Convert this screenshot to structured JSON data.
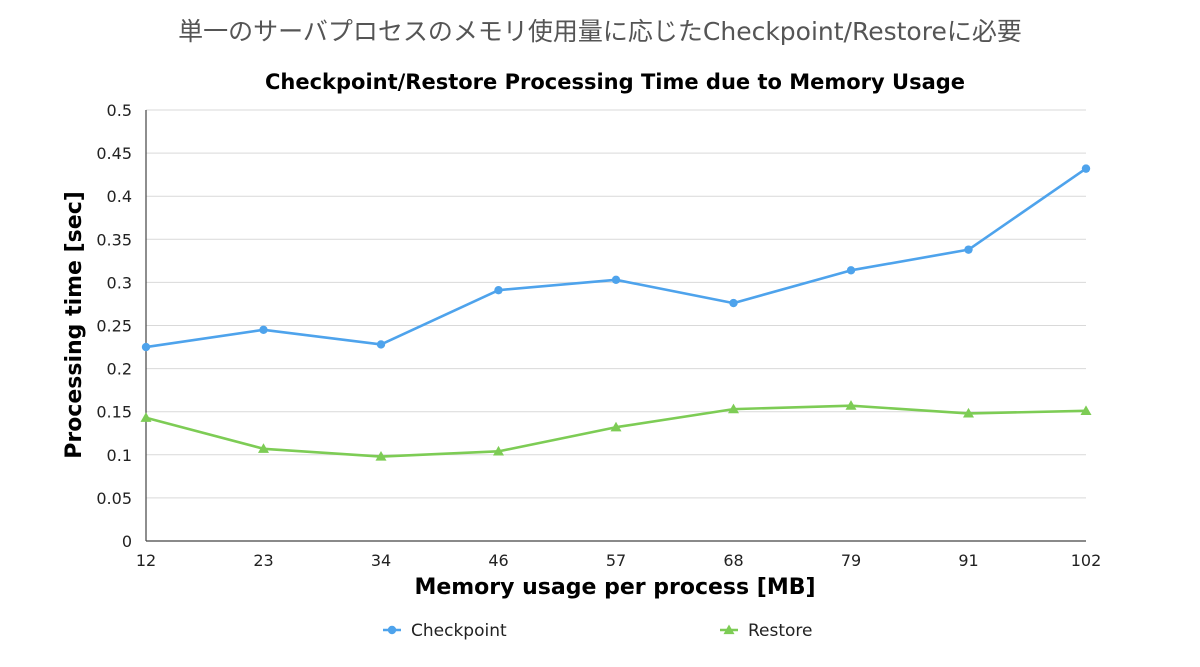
{
  "page": {
    "title": "単一のサーバプロセスのメモリ使用量に応じたCheckpoint/Restoreに必要"
  },
  "chart_data": {
    "type": "line",
    "title": "Checkpoint/Restore Processing Time due to Memory Usage",
    "xlabel": "Memory usage per process [MB]",
    "ylabel": "Processing time [sec]",
    "categories": [
      "12",
      "23",
      "34",
      "46",
      "57",
      "68",
      "79",
      "91",
      "102"
    ],
    "ylim": [
      0,
      0.5
    ],
    "yticks": [
      "0",
      "0.05",
      "0.1",
      "0.15",
      "0.2",
      "0.25",
      "0.3",
      "0.35",
      "0.4",
      "0.45",
      "0.5"
    ],
    "grid": true,
    "legend_position": "bottom",
    "series": [
      {
        "name": "Checkpoint",
        "color": "#4ea3ec",
        "marker": "circle",
        "values": [
          0.225,
          0.245,
          0.228,
          0.291,
          0.303,
          0.276,
          0.314,
          0.338,
          0.432
        ]
      },
      {
        "name": "Restore",
        "color": "#7dcc55",
        "marker": "triangle",
        "values": [
          0.143,
          0.107,
          0.098,
          0.104,
          0.132,
          0.153,
          0.157,
          0.148,
          0.151
        ]
      }
    ]
  }
}
